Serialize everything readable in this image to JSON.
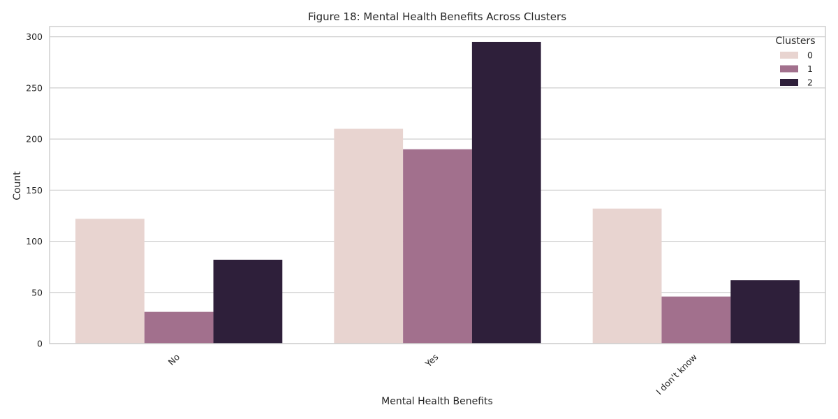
{
  "chart_data": {
    "type": "bar",
    "title": "Figure 18: Mental Health Benefits Across Clusters",
    "xlabel": "Mental Health Benefits",
    "ylabel": "Count",
    "categories": [
      "No",
      "Yes",
      "I don't know"
    ],
    "series": [
      {
        "name": "0",
        "values": [
          122,
          210,
          132
        ],
        "color": "#e8d4d0"
      },
      {
        "name": "1",
        "values": [
          31,
          190,
          46
        ],
        "color": "#a2708d"
      },
      {
        "name": "2",
        "values": [
          82,
          295,
          62
        ],
        "color": "#2e1f3a"
      }
    ],
    "ylim": [
      0,
      310
    ],
    "yticks": [
      0,
      50,
      100,
      150,
      200,
      250,
      300
    ],
    "grid": true,
    "legend": {
      "title": "Clusters",
      "position": "top-right"
    }
  }
}
